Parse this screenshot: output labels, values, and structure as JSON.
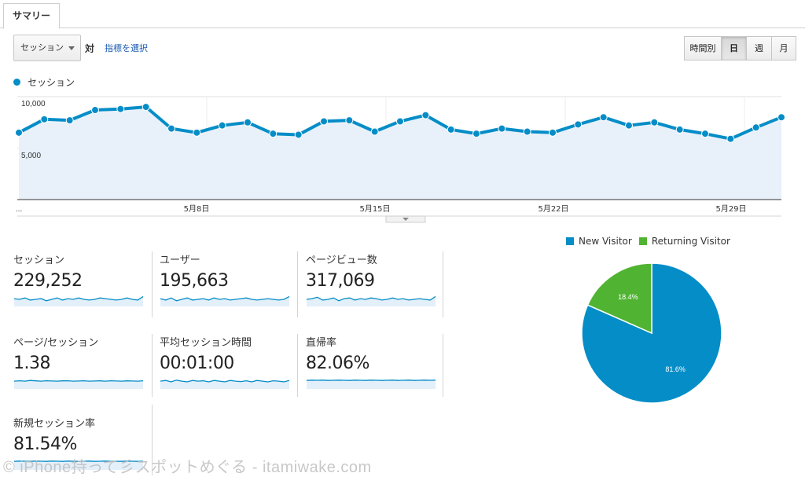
{
  "tabs": [
    {
      "label": "サマリー",
      "active": true
    }
  ],
  "controls": {
    "metric_select": "セッション",
    "vs_label": "対",
    "pick_metric_link": "指標を選択",
    "granularity": [
      "時間別",
      "日",
      "週",
      "月"
    ],
    "granularity_selected": "日"
  },
  "main_chart": {
    "legend_label": "セッション",
    "color": "#058dc7",
    "y_tick_labels": [
      "10,000",
      "5,000"
    ],
    "x_tick_labels": [
      "5月8日",
      "5月15日",
      "5月22日",
      "5月29日"
    ],
    "left_ellipsis": "..."
  },
  "chart_data": {
    "type": "line",
    "title": "",
    "series": [
      {
        "name": "セッション",
        "values": [
          6500,
          7800,
          7700,
          8700,
          8800,
          9000,
          6900,
          6500,
          7200,
          7500,
          6400,
          6300,
          7600,
          7700,
          6600,
          7600,
          8200,
          6800,
          6400,
          6900,
          6600,
          6500,
          7300,
          8000,
          7200,
          7500,
          6800,
          6400,
          5900,
          7000,
          8000
        ]
      }
    ],
    "x_ticks": [
      "5月8日",
      "5月15日",
      "5月22日",
      "5月29日"
    ],
    "ylim": [
      0,
      10000
    ],
    "y_ticks": [
      5000,
      10000
    ],
    "grid": true
  },
  "metrics": [
    {
      "label": "セッション",
      "value": "229,252",
      "spark": [
        0.55,
        0.5,
        0.6,
        0.45,
        0.5,
        0.55,
        0.4,
        0.5,
        0.6,
        0.45,
        0.55,
        0.5,
        0.6,
        0.5,
        0.45,
        0.5,
        0.6,
        0.55,
        0.5,
        0.45,
        0.5,
        0.6,
        0.5,
        0.45,
        0.7
      ]
    },
    {
      "label": "ユーザー",
      "value": "195,663",
      "spark": [
        0.55,
        0.45,
        0.6,
        0.4,
        0.5,
        0.6,
        0.45,
        0.5,
        0.55,
        0.45,
        0.6,
        0.5,
        0.55,
        0.45,
        0.5,
        0.55,
        0.6,
        0.5,
        0.45,
        0.5,
        0.55,
        0.5,
        0.45,
        0.5,
        0.7
      ]
    },
    {
      "label": "ページビュー数",
      "value": "317,069",
      "spark": [
        0.5,
        0.55,
        0.65,
        0.45,
        0.5,
        0.6,
        0.4,
        0.55,
        0.6,
        0.45,
        0.55,
        0.5,
        0.6,
        0.55,
        0.45,
        0.5,
        0.6,
        0.5,
        0.55,
        0.45,
        0.5,
        0.55,
        0.5,
        0.45,
        0.7
      ]
    },
    {
      "label": "ページ/セッション",
      "value": "1.38",
      "spark": [
        0.55,
        0.58,
        0.55,
        0.6,
        0.57,
        0.55,
        0.58,
        0.56,
        0.55,
        0.57,
        0.58,
        0.55,
        0.56,
        0.58,
        0.55,
        0.56,
        0.57,
        0.55,
        0.58,
        0.56,
        0.55,
        0.57,
        0.56,
        0.55,
        0.58
      ]
    },
    {
      "label": "平均セッション時間",
      "value": "00:01:00",
      "spark": [
        0.55,
        0.6,
        0.5,
        0.62,
        0.55,
        0.5,
        0.6,
        0.55,
        0.58,
        0.5,
        0.6,
        0.55,
        0.5,
        0.6,
        0.55,
        0.52,
        0.58,
        0.5,
        0.6,
        0.55,
        0.5,
        0.58,
        0.55,
        0.5,
        0.6
      ]
    },
    {
      "label": "直帰率",
      "value": "82.06%",
      "spark": [
        0.6,
        0.62,
        0.61,
        0.62,
        0.6,
        0.61,
        0.62,
        0.61,
        0.6,
        0.62,
        0.61,
        0.6,
        0.62,
        0.61,
        0.6,
        0.61,
        0.62,
        0.6,
        0.61,
        0.62,
        0.6,
        0.61,
        0.62,
        0.61,
        0.62
      ]
    },
    {
      "label": "新規セッション率",
      "value": "81.54%",
      "spark": [
        0.6,
        0.62,
        0.61,
        0.6,
        0.62,
        0.61,
        0.6,
        0.62,
        0.61,
        0.6,
        0.62,
        0.61,
        0.6,
        0.61,
        0.62,
        0.6,
        0.61,
        0.62,
        0.6,
        0.61,
        0.6,
        0.62,
        0.61,
        0.6,
        0.61
      ]
    }
  ],
  "pie": {
    "legend": [
      {
        "name": "New Visitor",
        "color": "#058dc7"
      },
      {
        "name": "Returning Visitor",
        "color": "#50b432"
      }
    ],
    "slices": [
      {
        "name": "New Visitor",
        "value": 81.6,
        "label": "81.6%",
        "color": "#058dc7"
      },
      {
        "name": "Returning Visitor",
        "value": 18.4,
        "label": "18.4%",
        "color": "#50b432"
      }
    ]
  },
  "watermark": "© iPhone持って彡スポットめぐる - itamiwake.com"
}
